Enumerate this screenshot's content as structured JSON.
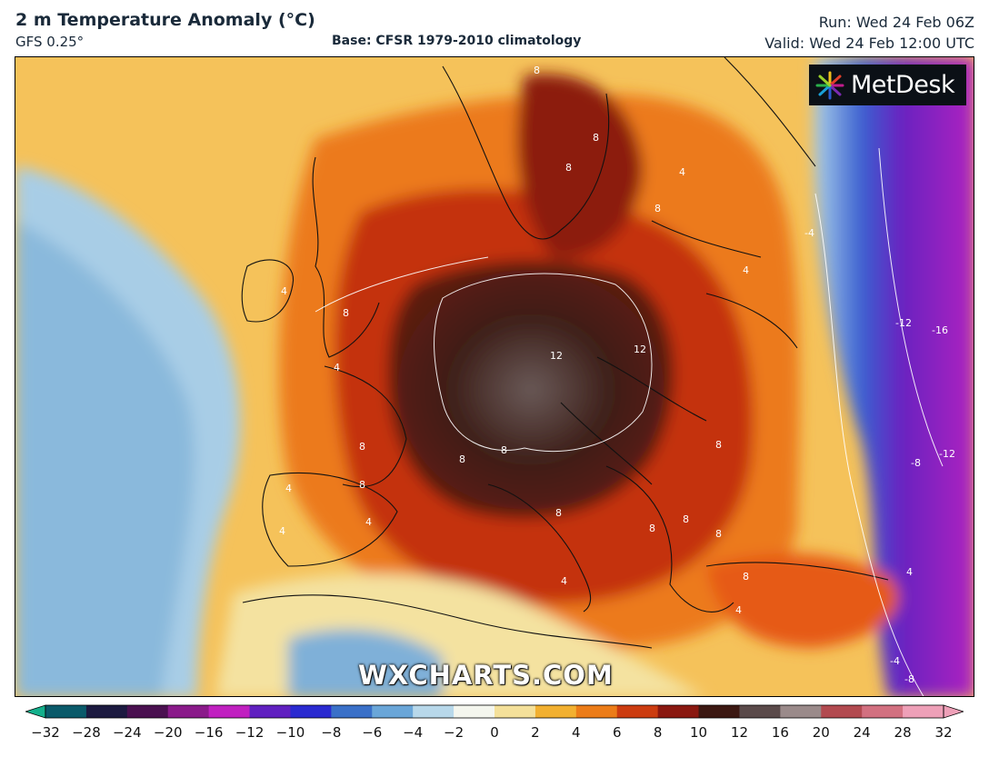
{
  "header": {
    "title": "2 m Temperature Anomaly (°C)",
    "model": "GFS 0.25°",
    "base": "Base: CFSR 1979-2010 climatology",
    "run": "Run: Wed 24 Feb 06Z",
    "valid": "Valid: Wed 24 Feb 12:00 UTC"
  },
  "brand": {
    "logo_text": "MetDesk",
    "logo_icon": "starburst-icon",
    "watermark": "WXCHARTS.COM"
  },
  "map": {
    "contour_labels": [
      "8",
      "8",
      "8",
      "4",
      "4",
      "8",
      "4",
      "8",
      "4",
      "12",
      "12",
      "8",
      "8",
      "8",
      "8",
      "8",
      "8",
      "8",
      "8",
      "8",
      "4",
      "4",
      "4",
      "4",
      "-4",
      "-12",
      "-16",
      "-12",
      "-8",
      "-4",
      "-8",
      "8",
      "4",
      "4"
    ]
  },
  "legend": {
    "ticks": [
      "−32",
      "−28",
      "−24",
      "−20",
      "−16",
      "−12",
      "−10",
      "−8",
      "−6",
      "−4",
      "−2",
      "0",
      "2",
      "4",
      "6",
      "8",
      "10",
      "12",
      "16",
      "20",
      "24",
      "28",
      "32"
    ],
    "colors": [
      "#14b08c",
      "#0a5a6a",
      "#1c1a40",
      "#4a1050",
      "#8a1a8a",
      "#c020c0",
      "#6020c0",
      "#2a2ad0",
      "#3a70c8",
      "#6aa6d8",
      "#b8d8ea",
      "#f4f6ee",
      "#f4e09a",
      "#f2b030",
      "#ec7c18",
      "#cc3c10",
      "#8a1810",
      "#3c1812",
      "#5a4a4a",
      "#9a8a8a",
      "#b24a50",
      "#d27080",
      "#eea0b8"
    ]
  }
}
